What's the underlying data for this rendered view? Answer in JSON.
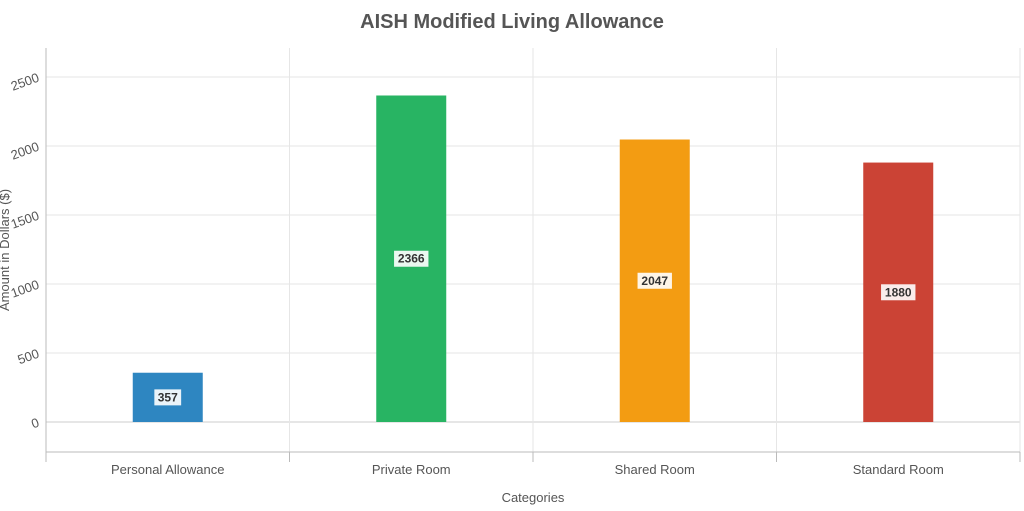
{
  "chart_data": {
    "type": "bar",
    "title": "AISH Modified Living Allowance",
    "xlabel": "Categories",
    "ylabel": "Amount in Dollars ($)",
    "categories": [
      "Personal Allowance",
      "Private Room",
      "Shared Room",
      "Standard Room"
    ],
    "values": [
      357,
      2366,
      2047,
      1880
    ],
    "colors": [
      "#2e86c1",
      "#28b463",
      "#f39c12",
      "#cb4335"
    ],
    "ylim": [
      -250,
      2700
    ],
    "yticks": [
      0,
      500,
      1000,
      1500,
      2000,
      2500
    ],
    "ytick_labels": [
      "0",
      "500",
      "1000",
      "1500",
      "2000",
      "2500"
    ],
    "grid": true,
    "legend": "none"
  }
}
